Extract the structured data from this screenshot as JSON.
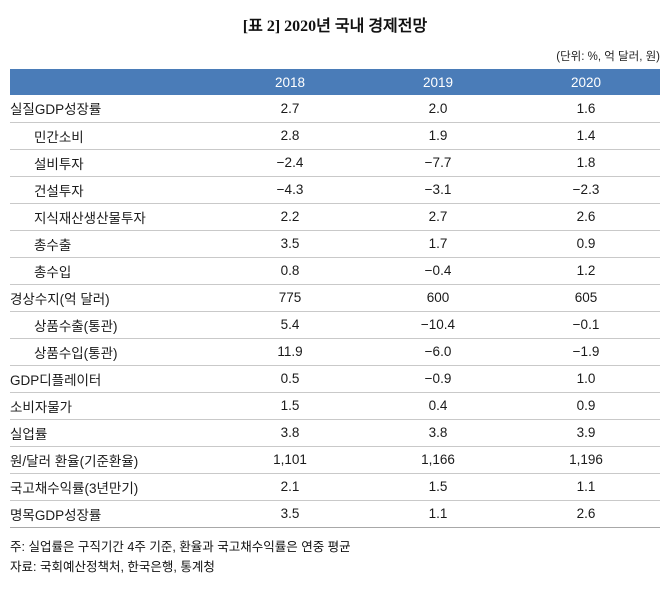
{
  "title": "[표 2] 2020년 국내 경제전망",
  "unit_note": "(단위: %, 억 달러, 원)",
  "chart_data": {
    "type": "table",
    "title": "[표 2] 2020년 국내 경제전망",
    "unit": "%, 억 달러, 원",
    "columns": [
      "",
      "2018",
      "2019",
      "2020"
    ],
    "rows": [
      {
        "label": "실질GDP성장률",
        "indent": false,
        "values": [
          "2.7",
          "2.0",
          "1.6"
        ]
      },
      {
        "label": "민간소비",
        "indent": true,
        "values": [
          "2.8",
          "1.9",
          "1.4"
        ]
      },
      {
        "label": "설비투자",
        "indent": true,
        "values": [
          "−2.4",
          "−7.7",
          "1.8"
        ]
      },
      {
        "label": "건설투자",
        "indent": true,
        "values": [
          "−4.3",
          "−3.1",
          "−2.3"
        ]
      },
      {
        "label": "지식재산생산물투자",
        "indent": true,
        "values": [
          "2.2",
          "2.7",
          "2.6"
        ]
      },
      {
        "label": "총수출",
        "indent": true,
        "values": [
          "3.5",
          "1.7",
          "0.9"
        ]
      },
      {
        "label": "총수입",
        "indent": true,
        "values": [
          "0.8",
          "−0.4",
          "1.2"
        ]
      },
      {
        "label": "경상수지(억 달러)",
        "indent": false,
        "values": [
          "775",
          "600",
          "605"
        ]
      },
      {
        "label": "상품수출(통관)",
        "indent": true,
        "values": [
          "5.4",
          "−10.4",
          "−0.1"
        ]
      },
      {
        "label": "상품수입(통관)",
        "indent": true,
        "values": [
          "11.9",
          "−6.0",
          "−1.9"
        ]
      },
      {
        "label": "GDP디플레이터",
        "indent": false,
        "values": [
          "0.5",
          "−0.9",
          "1.0"
        ]
      },
      {
        "label": "소비자물가",
        "indent": false,
        "values": [
          "1.5",
          "0.4",
          "0.9"
        ]
      },
      {
        "label": "실업률",
        "indent": false,
        "values": [
          "3.8",
          "3.8",
          "3.9"
        ]
      },
      {
        "label": "원/달러 환율(기준환율)",
        "indent": false,
        "values": [
          "1,101",
          "1,166",
          "1,196"
        ]
      },
      {
        "label": "국고채수익률(3년만기)",
        "indent": false,
        "values": [
          "2.1",
          "1.5",
          "1.1"
        ]
      },
      {
        "label": "명목GDP성장률",
        "indent": false,
        "values": [
          "3.5",
          "1.1",
          "2.6"
        ]
      }
    ],
    "header_bg": "#4a7cb8",
    "header_text_color": "#ffffff"
  },
  "footnotes": {
    "note": "주: 실업률은 구직기간 4주 기준, 환율과 국고채수익률은 연중 평균",
    "source": "자료: 국회예산정책처, 한국은행, 통계청"
  }
}
